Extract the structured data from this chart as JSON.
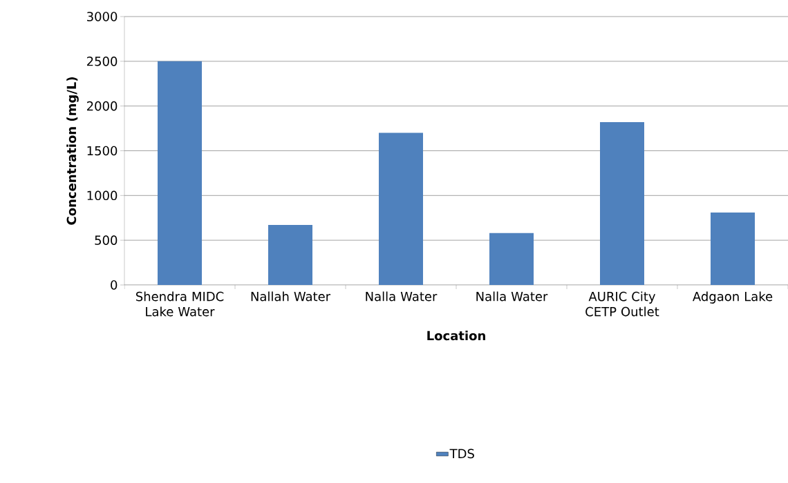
{
  "chart_data": {
    "type": "bar",
    "xlabel": "Location",
    "ylabel": "Concentration (mg/L)",
    "categories": [
      "Shendra MIDC Lake Water",
      "Nallah Water",
      "Nalla Water",
      "Nalla Water",
      "AURIC City CETP Outlet",
      "Adgaon Lake"
    ],
    "series": [
      {
        "name": "TDS",
        "color": "#4f81bd",
        "values": [
          2500,
          670,
          1700,
          580,
          1820,
          810
        ]
      }
    ],
    "ylim": [
      0,
      3000
    ],
    "yticks": [
      0,
      500,
      1000,
      1500,
      2000,
      2500,
      3000
    ],
    "grid": "y",
    "legend": "bottom"
  }
}
